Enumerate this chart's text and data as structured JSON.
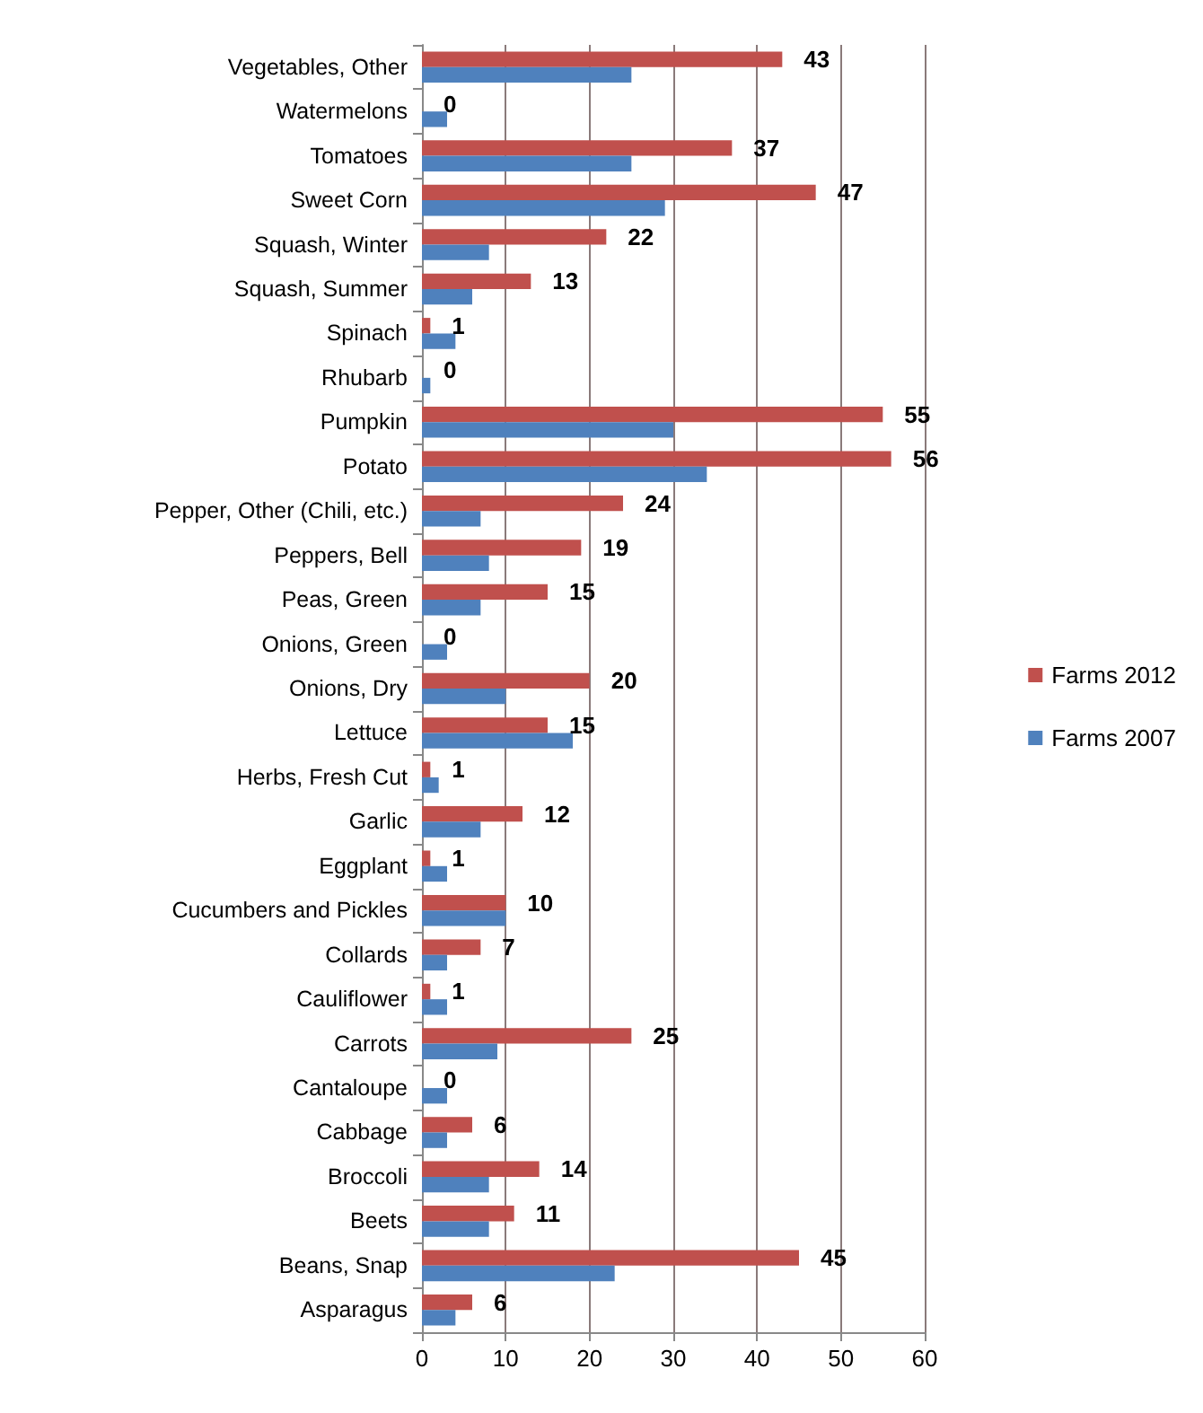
{
  "chart_data": {
    "type": "bar",
    "orientation": "horizontal",
    "categories": [
      "Vegetables, Other",
      "Watermelons",
      "Tomatoes",
      "Sweet Corn",
      "Squash, Winter",
      "Squash, Summer",
      "Spinach",
      "Rhubarb",
      "Pumpkin",
      "Potato",
      "Pepper, Other (Chili, etc.)",
      "Peppers, Bell",
      "Peas, Green",
      "Onions, Green",
      "Onions, Dry",
      "Lettuce",
      "Herbs, Fresh Cut",
      "Garlic",
      "Eggplant",
      "Cucumbers and Pickles",
      "Collards",
      "Cauliflower",
      "Carrots",
      "Cantaloupe",
      "Cabbage",
      "Broccoli",
      "Beets",
      "Beans, Snap",
      "Asparagus"
    ],
    "series": [
      {
        "name": "Farms 2012",
        "color": "#c0504d",
        "values": [
          43,
          0,
          37,
          47,
          22,
          13,
          1,
          0,
          55,
          56,
          24,
          19,
          15,
          0,
          20,
          15,
          1,
          12,
          1,
          10,
          7,
          1,
          25,
          0,
          6,
          14,
          11,
          45,
          6
        ],
        "value_labels": [
          "43",
          "0",
          "37",
          "47",
          "22",
          "13",
          "1",
          "0",
          "55",
          "56",
          "24",
          "19",
          "15",
          "0",
          "20",
          "15",
          "1",
          "12",
          "1",
          "10",
          "7",
          "1",
          "25",
          "0",
          "6",
          "14",
          "11",
          "45",
          "6"
        ]
      },
      {
        "name": "Farms 2007",
        "color": "#4f81bd",
        "values": [
          25,
          3,
          25,
          29,
          8,
          6,
          4,
          1,
          30,
          34,
          7,
          8,
          7,
          3,
          10,
          18,
          2,
          7,
          3,
          10,
          3,
          3,
          9,
          3,
          3,
          8,
          8,
          23,
          4
        ]
      }
    ],
    "xlim": [
      0,
      60
    ],
    "xticks": [
      0,
      10,
      20,
      30,
      40,
      50,
      60
    ],
    "grid": "x",
    "legend": "right"
  }
}
